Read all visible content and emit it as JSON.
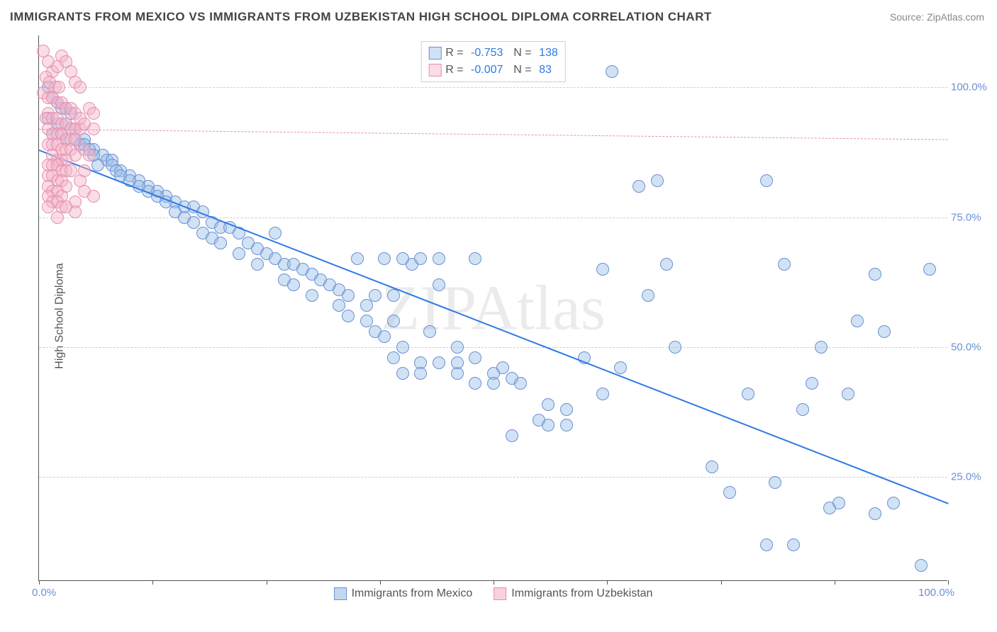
{
  "title": "IMMIGRANTS FROM MEXICO VS IMMIGRANTS FROM UZBEKISTAN HIGH SCHOOL DIPLOMA CORRELATION CHART",
  "source_prefix": "Source: ",
  "source_name": "ZipAtlas.com",
  "ylabel": "High School Diploma",
  "watermark": "ZIPAtlas",
  "chart": {
    "type": "scatter",
    "xlim": [
      0,
      100
    ],
    "ylim": [
      5,
      110
    ],
    "xticks": [
      0,
      12.5,
      25,
      37.5,
      50,
      62.5,
      75,
      87.5,
      100
    ],
    "yticks": [
      25,
      50,
      75,
      100
    ],
    "ytick_labels": [
      "25.0%",
      "50.0%",
      "75.0%",
      "100.0%"
    ],
    "xtick_left": "0.0%",
    "xtick_right": "100.0%",
    "grid_color": "#d0d0d0",
    "background_color": "#ffffff",
    "axis_color": "#555555",
    "label_fontsize": 16,
    "tick_fontsize": 15,
    "tick_color": "#6b8fd4",
    "marker_radius": 9,
    "marker_border_width": 1.5,
    "series": [
      {
        "name": "Immigrants from Mexico",
        "fill": "rgba(154,190,230,0.45)",
        "stroke": "#6b8fd4",
        "trend": {
          "x1": 0,
          "y1": 88,
          "x2": 100,
          "y2": 20,
          "color": "#2c7be5",
          "width": 2.5,
          "dash": "none"
        },
        "legend_r": "-0.753",
        "legend_n": "138",
        "points": [
          [
            1,
            100
          ],
          [
            1.5,
            98
          ],
          [
            2,
            97
          ],
          [
            2.5,
            96
          ],
          [
            3,
            96
          ],
          [
            3.5,
            95
          ],
          [
            1,
            94
          ],
          [
            2,
            93
          ],
          [
            3,
            93
          ],
          [
            4,
            92
          ],
          [
            1.5,
            91
          ],
          [
            2.5,
            91
          ],
          [
            4,
            90
          ],
          [
            5,
            90
          ],
          [
            3,
            90
          ],
          [
            4.5,
            89
          ],
          [
            5,
            89
          ],
          [
            6,
            88
          ],
          [
            5.5,
            88
          ],
          [
            7,
            87
          ],
          [
            6,
            87
          ],
          [
            7.5,
            86
          ],
          [
            8,
            86
          ],
          [
            6.5,
            85
          ],
          [
            8,
            85
          ],
          [
            9,
            84
          ],
          [
            8.5,
            84
          ],
          [
            10,
            83
          ],
          [
            9,
            83
          ],
          [
            11,
            82
          ],
          [
            10,
            82
          ],
          [
            12,
            81
          ],
          [
            11,
            81
          ],
          [
            13,
            80
          ],
          [
            12,
            80
          ],
          [
            14,
            79
          ],
          [
            13,
            79
          ],
          [
            15,
            78
          ],
          [
            14,
            78
          ],
          [
            16,
            77
          ],
          [
            17,
            77
          ],
          [
            15,
            76
          ],
          [
            18,
            76
          ],
          [
            16,
            75
          ],
          [
            19,
            74
          ],
          [
            17,
            74
          ],
          [
            20,
            73
          ],
          [
            21,
            73
          ],
          [
            18,
            72
          ],
          [
            22,
            72
          ],
          [
            19,
            71
          ],
          [
            23,
            70
          ],
          [
            20,
            70
          ],
          [
            24,
            69
          ],
          [
            25,
            68
          ],
          [
            22,
            68
          ],
          [
            26,
            67
          ],
          [
            27,
            66
          ],
          [
            24,
            66
          ],
          [
            28,
            66
          ],
          [
            26,
            72
          ],
          [
            29,
            65
          ],
          [
            30,
            64
          ],
          [
            27,
            63
          ],
          [
            31,
            63
          ],
          [
            28,
            62
          ],
          [
            32,
            62
          ],
          [
            33,
            61
          ],
          [
            30,
            60
          ],
          [
            34,
            60
          ],
          [
            35,
            67
          ],
          [
            36,
            58
          ],
          [
            33,
            58
          ],
          [
            38,
            67
          ],
          [
            34,
            56
          ],
          [
            39,
            55
          ],
          [
            36,
            55
          ],
          [
            41,
            66
          ],
          [
            37,
            53
          ],
          [
            43,
            53
          ],
          [
            38,
            52
          ],
          [
            44,
            62
          ],
          [
            40,
            50
          ],
          [
            46,
            50
          ],
          [
            42,
            47
          ],
          [
            48,
            48
          ],
          [
            44,
            47
          ],
          [
            50,
            45
          ],
          [
            46,
            45
          ],
          [
            51,
            46
          ],
          [
            48,
            43
          ],
          [
            52,
            44
          ],
          [
            50,
            43
          ],
          [
            53,
            43
          ],
          [
            52,
            33
          ],
          [
            56,
            39
          ],
          [
            55,
            36
          ],
          [
            58,
            35
          ],
          [
            56,
            35
          ],
          [
            60,
            48
          ],
          [
            58,
            38
          ],
          [
            62,
            41
          ],
          [
            63,
            103
          ],
          [
            64,
            46
          ],
          [
            62,
            65
          ],
          [
            66,
            81
          ],
          [
            67,
            60
          ],
          [
            68,
            82
          ],
          [
            69,
            66
          ],
          [
            70,
            50
          ],
          [
            74,
            27
          ],
          [
            76,
            22
          ],
          [
            78,
            41
          ],
          [
            80,
            12
          ],
          [
            80,
            82
          ],
          [
            81,
            24
          ],
          [
            82,
            66
          ],
          [
            83,
            12
          ],
          [
            84,
            38
          ],
          [
            85,
            43
          ],
          [
            86,
            50
          ],
          [
            87,
            19
          ],
          [
            88,
            20
          ],
          [
            89,
            41
          ],
          [
            90,
            55
          ],
          [
            92,
            18
          ],
          [
            92,
            64
          ],
          [
            93,
            53
          ],
          [
            94,
            20
          ],
          [
            97,
            8
          ],
          [
            98,
            65
          ],
          [
            40,
            67
          ],
          [
            42,
            67
          ],
          [
            44,
            67
          ],
          [
            48,
            67
          ],
          [
            39,
            48
          ],
          [
            40,
            45
          ],
          [
            42,
            45
          ],
          [
            46,
            47
          ],
          [
            37,
            60
          ],
          [
            39,
            60
          ]
        ]
      },
      {
        "name": "Immigrants from Uzbekistan",
        "fill": "rgba(244,180,200,0.45)",
        "stroke": "#e68fb0",
        "trend": {
          "x1": 0,
          "y1": 92,
          "x2": 100,
          "y2": 90,
          "color": "#e68fb0",
          "width": 1.5,
          "dash": "6 5"
        },
        "legend_r": "-0.007",
        "legend_n": "83",
        "points": [
          [
            0.5,
            107
          ],
          [
            1,
            105
          ],
          [
            1.5,
            103
          ],
          [
            2,
            104
          ],
          [
            2.5,
            106
          ],
          [
            0.8,
            102
          ],
          [
            1.2,
            101
          ],
          [
            1.8,
            100
          ],
          [
            2.2,
            100
          ],
          [
            3,
            105
          ],
          [
            3.5,
            103
          ],
          [
            4,
            101
          ],
          [
            4.5,
            100
          ],
          [
            0.5,
            99
          ],
          [
            1,
            98
          ],
          [
            1.5,
            98
          ],
          [
            2,
            97
          ],
          [
            2.5,
            97
          ],
          [
            3,
            96
          ],
          [
            3.5,
            96
          ],
          [
            4,
            95
          ],
          [
            1,
            95
          ],
          [
            0.8,
            94
          ],
          [
            1.5,
            94
          ],
          [
            2,
            94
          ],
          [
            2.5,
            93
          ],
          [
            3,
            93
          ],
          [
            3.5,
            92
          ],
          [
            4,
            92
          ],
          [
            4.5,
            92
          ],
          [
            1,
            92
          ],
          [
            1.5,
            91
          ],
          [
            2,
            91
          ],
          [
            2.5,
            91
          ],
          [
            3,
            90
          ],
          [
            3.5,
            90
          ],
          [
            4,
            90
          ],
          [
            1,
            89
          ],
          [
            1.5,
            89
          ],
          [
            2,
            89
          ],
          [
            2.5,
            88
          ],
          [
            3,
            88
          ],
          [
            3.5,
            88
          ],
          [
            4,
            87
          ],
          [
            1.5,
            87
          ],
          [
            2,
            86
          ],
          [
            2.5,
            86
          ],
          [
            3,
            86
          ],
          [
            1,
            85
          ],
          [
            1.5,
            85
          ],
          [
            2,
            85
          ],
          [
            2.5,
            84
          ],
          [
            3,
            84
          ],
          [
            3.5,
            84
          ],
          [
            1,
            83
          ],
          [
            1.5,
            83
          ],
          [
            2,
            82
          ],
          [
            2.5,
            82
          ],
          [
            3,
            81
          ],
          [
            1,
            81
          ],
          [
            1.5,
            80
          ],
          [
            2,
            80
          ],
          [
            2.5,
            79
          ],
          [
            1,
            79
          ],
          [
            1.5,
            78
          ],
          [
            2,
            78
          ],
          [
            2.5,
            77
          ],
          [
            1,
            77
          ],
          [
            4,
            78
          ],
          [
            5,
            80
          ],
          [
            6,
            79
          ],
          [
            4.5,
            94
          ],
          [
            5,
            93
          ],
          [
            5.5,
            96
          ],
          [
            6,
            95
          ],
          [
            5,
            88
          ],
          [
            5.5,
            87
          ],
          [
            6,
            92
          ],
          [
            4,
            76
          ],
          [
            3,
            77
          ],
          [
            2,
            75
          ],
          [
            4.5,
            82
          ],
          [
            5,
            84
          ]
        ]
      }
    ]
  },
  "bottom_legend": [
    {
      "label": "Immigrants from Mexico",
      "fill": "rgba(154,190,230,0.6)",
      "stroke": "#6b8fd4"
    },
    {
      "label": "Immigrants from Uzbekistan",
      "fill": "rgba(244,180,200,0.6)",
      "stroke": "#e68fb0"
    }
  ]
}
